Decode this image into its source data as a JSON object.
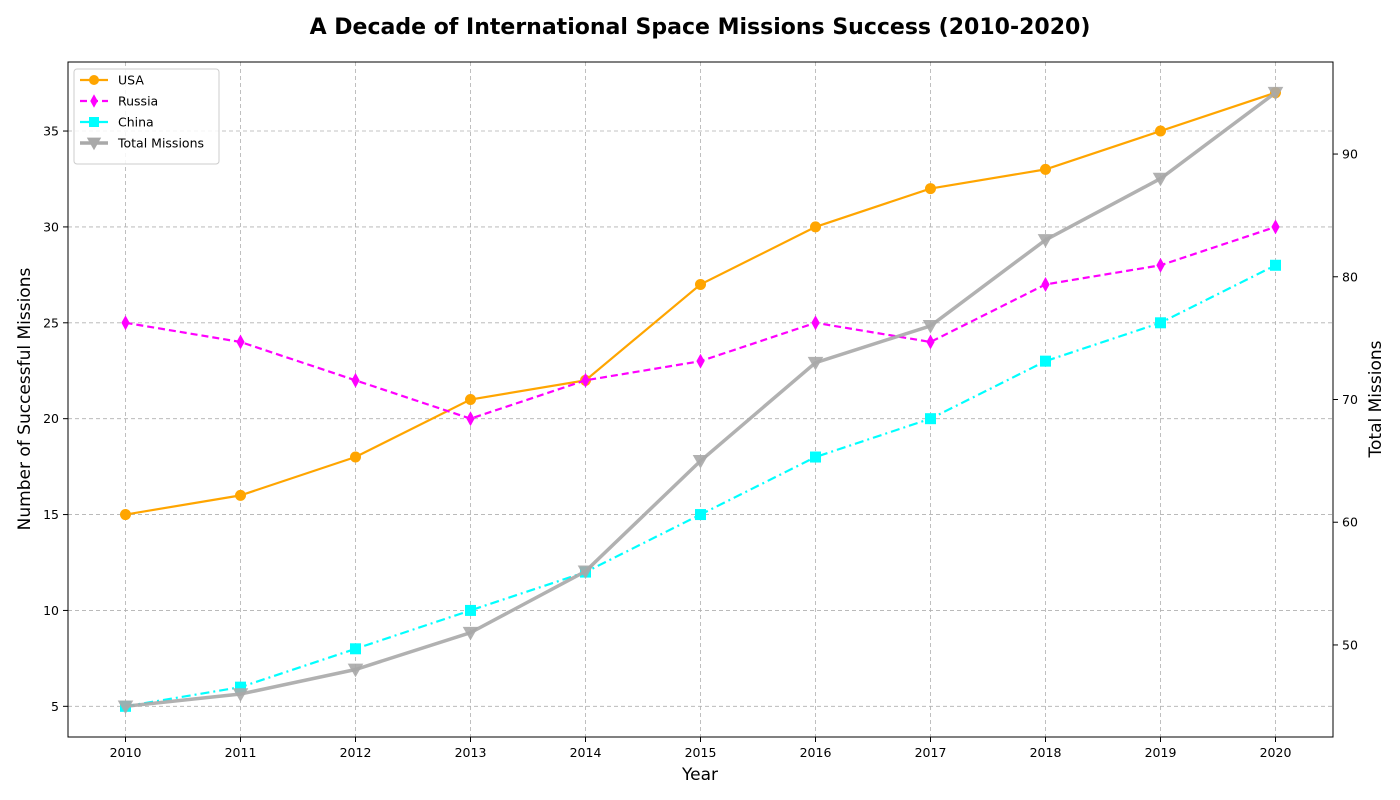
{
  "chart_data": {
    "type": "line",
    "title": "A Decade of International Space Missions Success (2010-2020)",
    "xlabel": "Year",
    "ylabel": "Number of Successful Missions",
    "ylabel_right": "Total Missions",
    "x": [
      2010,
      2011,
      2012,
      2013,
      2014,
      2015,
      2016,
      2017,
      2018,
      2019,
      2020
    ],
    "ylim": [
      3.4,
      38.6
    ],
    "ylim_right": [
      42.5,
      97.5
    ],
    "yticks": [
      5,
      10,
      15,
      20,
      25,
      30,
      35
    ],
    "yticks_right": [
      50,
      60,
      70,
      80,
      90
    ],
    "grid": true,
    "legend_position": "top-left",
    "series": [
      {
        "name": "USA",
        "axis": "left",
        "color": "#FFA500",
        "marker": "circle",
        "linestyle": "solid",
        "values": [
          15,
          16,
          18,
          21,
          22,
          27,
          30,
          32,
          33,
          35,
          37
        ]
      },
      {
        "name": "Russia",
        "axis": "left",
        "color": "#FF00FF",
        "marker": "diamond",
        "linestyle": "dashed",
        "values": [
          25,
          24,
          22,
          20,
          22,
          23,
          25,
          24,
          27,
          28,
          30
        ]
      },
      {
        "name": "China",
        "axis": "left",
        "color": "#00FFFF",
        "marker": "square",
        "linestyle": "dashdot",
        "values": [
          5,
          6,
          8,
          10,
          12,
          15,
          18,
          20,
          23,
          25,
          28
        ]
      },
      {
        "name": "Total Missions",
        "axis": "right",
        "color": "#A9A9A9",
        "marker": "triangle-down",
        "linestyle": "solid",
        "values": [
          45,
          46,
          48,
          51,
          56,
          65,
          73,
          76,
          83,
          88,
          95
        ]
      }
    ]
  }
}
